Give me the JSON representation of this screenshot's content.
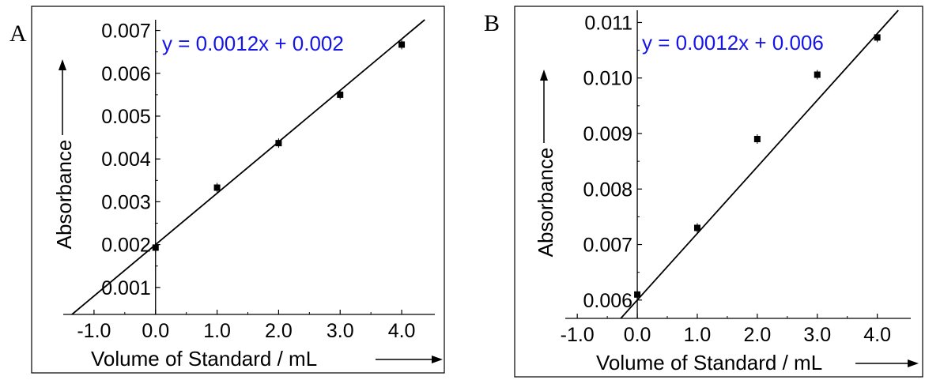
{
  "panels": [
    {
      "label": "A"
    },
    {
      "label": "B"
    }
  ],
  "chart_data": [
    {
      "type": "scatter",
      "panel": "A",
      "equation": "y = 0.0012x + 0.002",
      "xlabel": "Volume of Standard / mL",
      "ylabel": "Absorbance",
      "xlim": [
        -1.5,
        4.5
      ],
      "ylim": [
        0.00037,
        0.00725
      ],
      "xticks": [
        -1.0,
        0.0,
        1.0,
        2.0,
        3.0,
        4.0
      ],
      "xtick_labels": [
        "-1.0",
        "0.0",
        "1.0",
        "2.0",
        "3.0",
        "4.0"
      ],
      "yticks": [
        0.001,
        0.002,
        0.003,
        0.004,
        0.005,
        0.006,
        0.007
      ],
      "ytick_labels": [
        "0.001",
        "0.002",
        "0.003",
        "0.004",
        "0.005",
        "0.006",
        "0.007"
      ],
      "points": [
        {
          "x": 0,
          "y": 0.00193
        },
        {
          "x": 1,
          "y": 0.00333
        },
        {
          "x": 2,
          "y": 0.00437
        },
        {
          "x": 3,
          "y": 0.0055
        },
        {
          "x": 4,
          "y": 0.00667
        }
      ],
      "fit": {
        "slope": 0.0012,
        "intercept": 0.002
      }
    },
    {
      "type": "scatter",
      "panel": "B",
      "equation": "y = 0.0012x + 0.006",
      "xlabel": "Volume of Standard / mL",
      "ylabel": "Absorbance",
      "xlim": [
        -1.2,
        4.4
      ],
      "ylim": [
        0.00567,
        0.01122
      ],
      "xticks": [
        -1.0,
        0.0,
        1.0,
        2.0,
        3.0,
        4.0
      ],
      "xtick_labels": [
        "-1.0",
        "0.0",
        "1.0",
        "2.0",
        "3.0",
        "4.0"
      ],
      "yticks": [
        0.006,
        0.007,
        0.008,
        0.009,
        0.01,
        0.011
      ],
      "ytick_labels": [
        "0.006",
        "0.007",
        "0.008",
        "0.009",
        "0.010",
        "0.011"
      ],
      "points": [
        {
          "x": 0,
          "y": 0.0061
        },
        {
          "x": 1,
          "y": 0.0073
        },
        {
          "x": 2,
          "y": 0.0089
        },
        {
          "x": 3,
          "y": 0.01006
        },
        {
          "x": 4,
          "y": 0.01073
        }
      ],
      "fit": {
        "slope": 0.0012,
        "intercept": 0.006
      }
    }
  ]
}
